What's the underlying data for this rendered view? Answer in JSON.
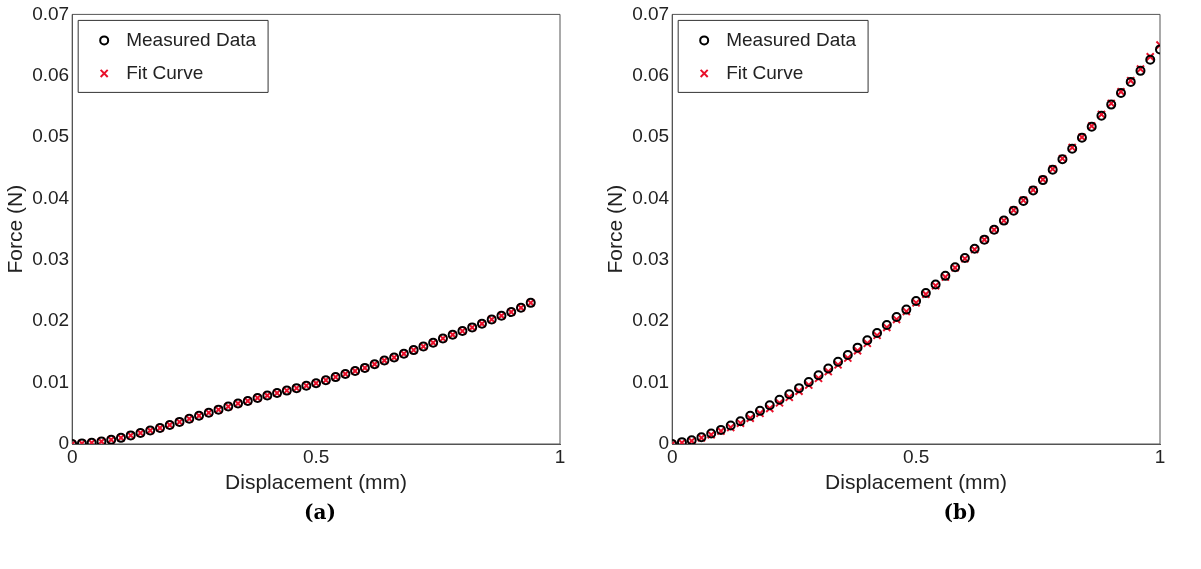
{
  "chart_data": [
    {
      "type": "scatter",
      "xlabel": "Displacement (mm)",
      "ylabel": "Force (N)",
      "xlim": [
        0,
        1
      ],
      "ylim": [
        0,
        0.07
      ],
      "xticks": [
        0,
        0.5,
        1
      ],
      "yticks": [
        0,
        0.01,
        0.02,
        0.03,
        0.04,
        0.05,
        0.06,
        0.07
      ],
      "grid": false,
      "legend": "top left",
      "annotations": [
        "(a)"
      ],
      "x": [
        0,
        0.02,
        0.04,
        0.06,
        0.08,
        0.1,
        0.12,
        0.14,
        0.16,
        0.18,
        0.2,
        0.22,
        0.24,
        0.26,
        0.28,
        0.3,
        0.32,
        0.34,
        0.36,
        0.38,
        0.4,
        0.42,
        0.44,
        0.46,
        0.48,
        0.5,
        0.52,
        0.54,
        0.56,
        0.58,
        0.6,
        0.62,
        0.64,
        0.66,
        0.68,
        0.7,
        0.72,
        0.74,
        0.76,
        0.78,
        0.8,
        0.82,
        0.84,
        0.86,
        0.88,
        0.9,
        0.92,
        0.94
      ],
      "series": [
        {
          "name": "Measured Data",
          "color": "#000000",
          "marker": "circle",
          "values": [
            0,
            0.0001,
            0.0002,
            0.0004,
            0.0007,
            0.001,
            0.0014,
            0.0018,
            0.0022,
            0.0026,
            0.0031,
            0.0036,
            0.0041,
            0.0046,
            0.0051,
            0.0056,
            0.0061,
            0.0066,
            0.007,
            0.0075,
            0.0079,
            0.0083,
            0.0087,
            0.0091,
            0.0095,
            0.0099,
            0.0104,
            0.0109,
            0.0114,
            0.0119,
            0.0124,
            0.013,
            0.0136,
            0.0141,
            0.0147,
            0.0153,
            0.0159,
            0.0165,
            0.0172,
            0.0178,
            0.0184,
            0.019,
            0.0196,
            0.0203,
            0.0209,
            0.0215,
            0.0222,
            0.023
          ]
        },
        {
          "name": "Fit Curve",
          "color": "#e8102a",
          "marker": "cross",
          "values": [
            0,
            0.0001,
            0.0002,
            0.0004,
            0.0007,
            0.001,
            0.0014,
            0.0018,
            0.0022,
            0.0026,
            0.0031,
            0.0036,
            0.0041,
            0.0046,
            0.0051,
            0.0056,
            0.0061,
            0.0066,
            0.007,
            0.0075,
            0.0079,
            0.0083,
            0.0087,
            0.0091,
            0.0095,
            0.0099,
            0.0104,
            0.0109,
            0.0114,
            0.0119,
            0.0124,
            0.013,
            0.0136,
            0.0141,
            0.0147,
            0.0153,
            0.0159,
            0.0165,
            0.0172,
            0.0178,
            0.0184,
            0.019,
            0.0196,
            0.0203,
            0.0209,
            0.0215,
            0.0222,
            0.023
          ]
        }
      ]
    },
    {
      "type": "scatter",
      "xlabel": "Displacement (mm)",
      "ylabel": "Force (N)",
      "xlim": [
        0,
        1
      ],
      "ylim": [
        0,
        0.07
      ],
      "xticks": [
        0,
        0.5,
        1
      ],
      "yticks": [
        0,
        0.01,
        0.02,
        0.03,
        0.04,
        0.05,
        0.06,
        0.07
      ],
      "grid": false,
      "legend": "top left",
      "annotations": [
        "(b)"
      ],
      "x": [
        0,
        0.02,
        0.04,
        0.06,
        0.08,
        0.1,
        0.12,
        0.14,
        0.16,
        0.18,
        0.2,
        0.22,
        0.24,
        0.26,
        0.28,
        0.3,
        0.32,
        0.34,
        0.36,
        0.38,
        0.4,
        0.42,
        0.44,
        0.46,
        0.48,
        0.5,
        0.52,
        0.54,
        0.56,
        0.58,
        0.6,
        0.62,
        0.64,
        0.66,
        0.68,
        0.7,
        0.72,
        0.74,
        0.76,
        0.78,
        0.8,
        0.82,
        0.84,
        0.86,
        0.88,
        0.9,
        0.92,
        0.94,
        0.96,
        0.98,
        1
      ],
      "series": [
        {
          "name": "Measured Data",
          "color": "#000000",
          "marker": "circle",
          "values": [
            0,
            0.0003,
            0.0006,
            0.0011,
            0.0017,
            0.0023,
            0.003,
            0.0037,
            0.0046,
            0.0054,
            0.0063,
            0.0072,
            0.0081,
            0.0091,
            0.0101,
            0.0112,
            0.0123,
            0.0134,
            0.0145,
            0.0157,
            0.0169,
            0.0181,
            0.0194,
            0.0207,
            0.0219,
            0.0233,
            0.0246,
            0.026,
            0.0274,
            0.0288,
            0.0303,
            0.0318,
            0.0333,
            0.0349,
            0.0364,
            0.038,
            0.0396,
            0.0413,
            0.043,
            0.0447,
            0.0464,
            0.0481,
            0.0499,
            0.0517,
            0.0535,
            0.0553,
            0.0572,
            0.059,
            0.0608,
            0.0626,
            0.0643
          ]
        },
        {
          "name": "Fit Curve",
          "color": "#e8102a",
          "marker": "cross",
          "values": [
            0,
            0.0002,
            0.0005,
            0.001,
            0.0015,
            0.0021,
            0.0027,
            0.0034,
            0.0042,
            0.005,
            0.0058,
            0.0067,
            0.0076,
            0.0086,
            0.0096,
            0.0107,
            0.0118,
            0.0129,
            0.014,
            0.0152,
            0.0164,
            0.0177,
            0.019,
            0.0203,
            0.0216,
            0.023,
            0.0244,
            0.0258,
            0.0272,
            0.0287,
            0.0302,
            0.0317,
            0.0333,
            0.0349,
            0.0364,
            0.0381,
            0.0397,
            0.0414,
            0.0431,
            0.0448,
            0.0465,
            0.0483,
            0.05,
            0.0518,
            0.0537,
            0.0555,
            0.0574,
            0.0592,
            0.0611,
            0.0631,
            0.065
          ]
        }
      ]
    }
  ]
}
